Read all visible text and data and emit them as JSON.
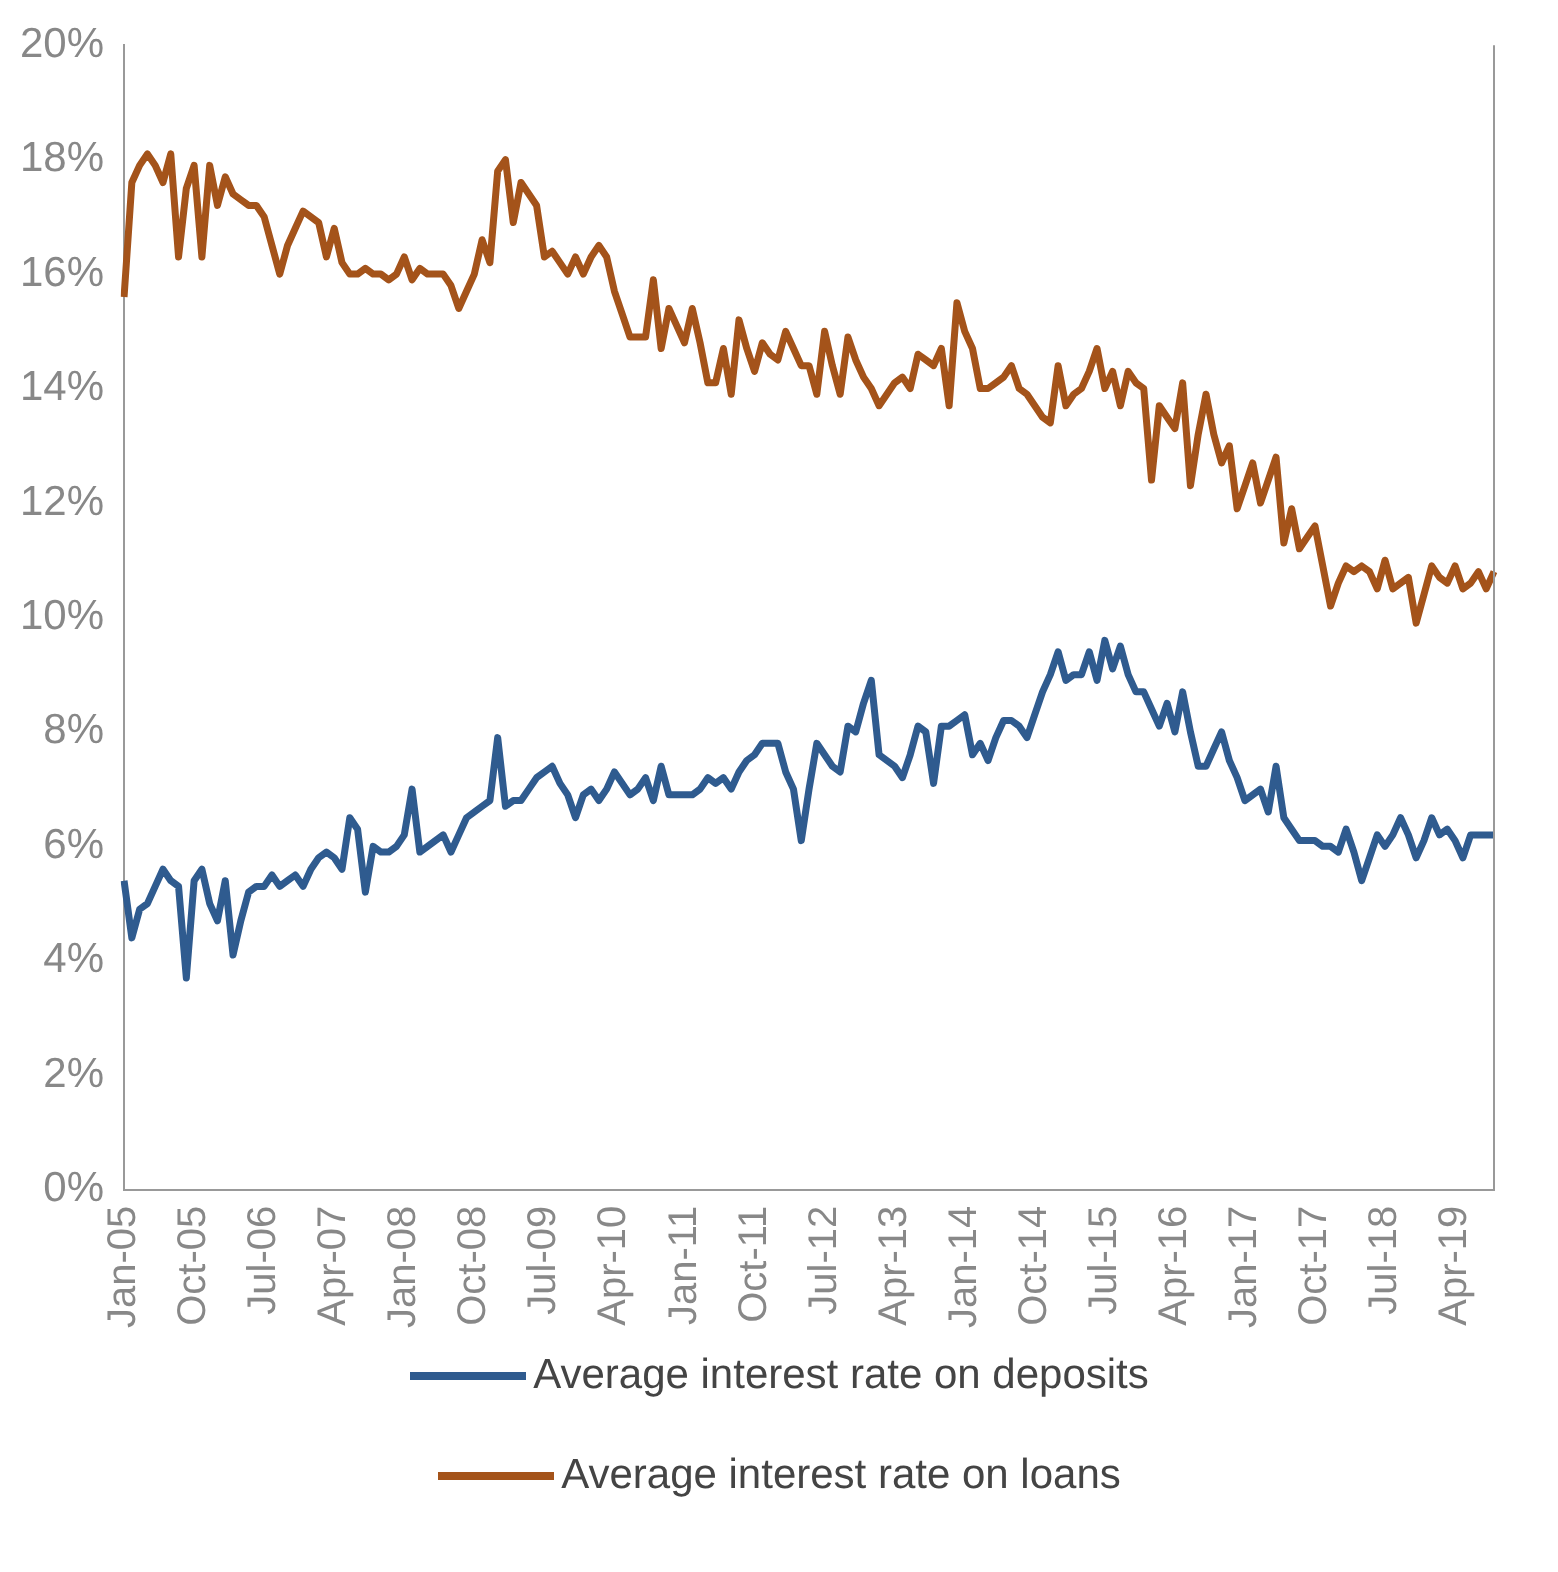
{
  "chart_data": {
    "type": "line",
    "categories": [
      "Jan-05",
      null,
      null,
      null,
      null,
      null,
      null,
      null,
      null,
      "Oct-05",
      null,
      null,
      null,
      null,
      null,
      null,
      null,
      null,
      "Jul-06",
      null,
      null,
      null,
      null,
      null,
      null,
      null,
      null,
      "Apr-07",
      null,
      null,
      null,
      null,
      null,
      null,
      null,
      null,
      "Jan-08",
      null,
      null,
      null,
      null,
      null,
      null,
      null,
      null,
      "Oct-08",
      null,
      null,
      null,
      null,
      null,
      null,
      null,
      null,
      "Jul-09",
      null,
      null,
      null,
      null,
      null,
      null,
      null,
      null,
      "Apr-10",
      null,
      null,
      null,
      null,
      null,
      null,
      null,
      null,
      "Jan-11",
      null,
      null,
      null,
      null,
      null,
      null,
      null,
      null,
      "Oct-11",
      null,
      null,
      null,
      null,
      null,
      null,
      null,
      null,
      "Jul-12",
      null,
      null,
      null,
      null,
      null,
      null,
      null,
      null,
      "Apr-13",
      null,
      null,
      null,
      null,
      null,
      null,
      null,
      null,
      "Jan-14",
      null,
      null,
      null,
      null,
      null,
      null,
      null,
      null,
      "Oct-14",
      null,
      null,
      null,
      null,
      null,
      null,
      null,
      null,
      "Jul-15",
      null,
      null,
      null,
      null,
      null,
      null,
      null,
      null,
      "Apr-16",
      null,
      null,
      null,
      null,
      null,
      null,
      null,
      null,
      "Jan-17",
      null,
      null,
      null,
      null,
      null,
      null,
      null,
      null,
      "Oct-17",
      null,
      null,
      null,
      null,
      null,
      null,
      null,
      null,
      "Jul-18",
      null,
      null,
      null,
      null,
      null,
      null,
      null,
      null,
      "Apr-19",
      null,
      null,
      null,
      null,
      null
    ],
    "series": [
      {
        "name": "Average interest rate on deposits",
        "color": "#2f5b8f",
        "values": [
          5.4,
          4.4,
          4.9,
          5.0,
          5.3,
          5.6,
          5.4,
          5.3,
          3.7,
          5.4,
          5.6,
          5.0,
          4.7,
          5.4,
          4.1,
          4.7,
          5.2,
          5.3,
          5.3,
          5.5,
          5.3,
          5.4,
          5.5,
          5.3,
          5.6,
          5.8,
          5.9,
          5.8,
          5.6,
          6.5,
          6.3,
          5.2,
          6.0,
          5.9,
          5.9,
          6.0,
          6.2,
          7.0,
          5.9,
          6.0,
          6.1,
          6.2,
          5.9,
          6.2,
          6.5,
          6.6,
          6.7,
          6.8,
          7.9,
          6.7,
          6.8,
          6.8,
          7.0,
          7.2,
          7.3,
          7.4,
          7.1,
          6.9,
          6.5,
          6.9,
          7.0,
          6.8,
          7.0,
          7.3,
          7.1,
          6.9,
          7.0,
          7.2,
          6.8,
          7.4,
          6.9,
          6.9,
          6.9,
          6.9,
          7.0,
          7.2,
          7.1,
          7.2,
          7.0,
          7.3,
          7.5,
          7.6,
          7.8,
          7.8,
          7.8,
          7.3,
          7.0,
          6.1,
          7.0,
          7.8,
          7.6,
          7.4,
          7.3,
          8.1,
          8.0,
          8.5,
          8.9,
          7.6,
          7.5,
          7.4,
          7.2,
          7.6,
          8.1,
          8.0,
          7.1,
          8.1,
          8.1,
          8.2,
          8.3,
          7.6,
          7.8,
          7.5,
          7.9,
          8.2,
          8.2,
          8.1,
          7.9,
          8.3,
          8.7,
          9.0,
          9.4,
          8.9,
          9.0,
          9.0,
          9.4,
          8.9,
          9.6,
          9.1,
          9.5,
          9.0,
          8.7,
          8.7,
          8.4,
          8.1,
          8.5,
          8.0,
          8.7,
          8.0,
          7.4,
          7.4,
          7.7,
          8.0,
          7.5,
          7.2,
          6.8,
          6.9,
          7.0,
          6.6,
          7.4,
          6.5,
          6.3,
          6.1,
          6.1,
          6.1,
          6.0,
          6.0,
          5.9,
          6.3,
          5.9,
          5.4,
          5.8,
          6.2,
          6.0,
          6.2,
          6.5,
          6.2,
          5.8,
          6.1,
          6.5,
          6.2,
          6.3,
          6.1,
          5.8,
          6.2,
          6.2,
          6.2,
          6.2
        ]
      },
      {
        "name": "Average interest rate on loans",
        "color": "#a4531a",
        "values": [
          15.6,
          17.6,
          17.9,
          18.1,
          17.9,
          17.6,
          18.1,
          16.3,
          17.5,
          17.9,
          16.3,
          17.9,
          17.2,
          17.7,
          17.4,
          17.3,
          17.2,
          17.2,
          17.0,
          16.5,
          16.0,
          16.5,
          16.8,
          17.1,
          17.0,
          16.9,
          16.3,
          16.8,
          16.2,
          16.0,
          16.0,
          16.1,
          16.0,
          16.0,
          15.9,
          16.0,
          16.3,
          15.9,
          16.1,
          16.0,
          16.0,
          16.0,
          15.8,
          15.4,
          15.7,
          16.0,
          16.6,
          16.2,
          17.8,
          18.0,
          16.9,
          17.6,
          17.4,
          17.2,
          16.3,
          16.4,
          16.2,
          16.0,
          16.3,
          16.0,
          16.3,
          16.5,
          16.3,
          15.7,
          15.3,
          14.9,
          14.9,
          14.9,
          15.9,
          14.7,
          15.4,
          15.1,
          14.8,
          15.4,
          14.8,
          14.1,
          14.1,
          14.7,
          13.9,
          15.2,
          14.7,
          14.3,
          14.8,
          14.6,
          14.5,
          15.0,
          14.7,
          14.4,
          14.4,
          13.9,
          15.0,
          14.4,
          13.9,
          14.9,
          14.5,
          14.2,
          14.0,
          13.7,
          13.9,
          14.1,
          14.2,
          14.0,
          14.6,
          14.5,
          14.4,
          14.7,
          13.7,
          15.5,
          15.0,
          14.7,
          14.0,
          14.0,
          14.1,
          14.2,
          14.4,
          14.0,
          13.9,
          13.7,
          13.5,
          13.4,
          14.4,
          13.7,
          13.9,
          14.0,
          14.3,
          14.7,
          14.0,
          14.3,
          13.7,
          14.3,
          14.1,
          14.0,
          12.4,
          13.7,
          13.5,
          13.3,
          14.1,
          12.3,
          13.2,
          13.9,
          13.2,
          12.7,
          13.0,
          11.9,
          12.3,
          12.7,
          12.0,
          12.4,
          12.8,
          11.3,
          11.9,
          11.2,
          11.4,
          11.6,
          10.9,
          10.2,
          10.6,
          10.9,
          10.8,
          10.9,
          10.8,
          10.5,
          11.0,
          10.5,
          10.6,
          10.7,
          9.9,
          10.4,
          10.9,
          10.7,
          10.6,
          10.9,
          10.5,
          10.6,
          10.8,
          10.5,
          10.8
        ]
      }
    ],
    "ylim": [
      0,
      20
    ],
    "yticks": [
      {
        "value": 0,
        "label": "0%"
      },
      {
        "value": 2,
        "label": "2%"
      },
      {
        "value": 4,
        "label": "4%"
      },
      {
        "value": 6,
        "label": "6%"
      },
      {
        "value": 8,
        "label": "8%"
      },
      {
        "value": 10,
        "label": "10%"
      },
      {
        "value": 12,
        "label": "12%"
      },
      {
        "value": 14,
        "label": "14%"
      },
      {
        "value": 16,
        "label": "16%"
      },
      {
        "value": 18,
        "label": "18%"
      },
      {
        "value": 20,
        "label": "20%"
      }
    ],
    "grid": false,
    "legend": "bottom",
    "marker": "none",
    "line_style": "solid"
  }
}
